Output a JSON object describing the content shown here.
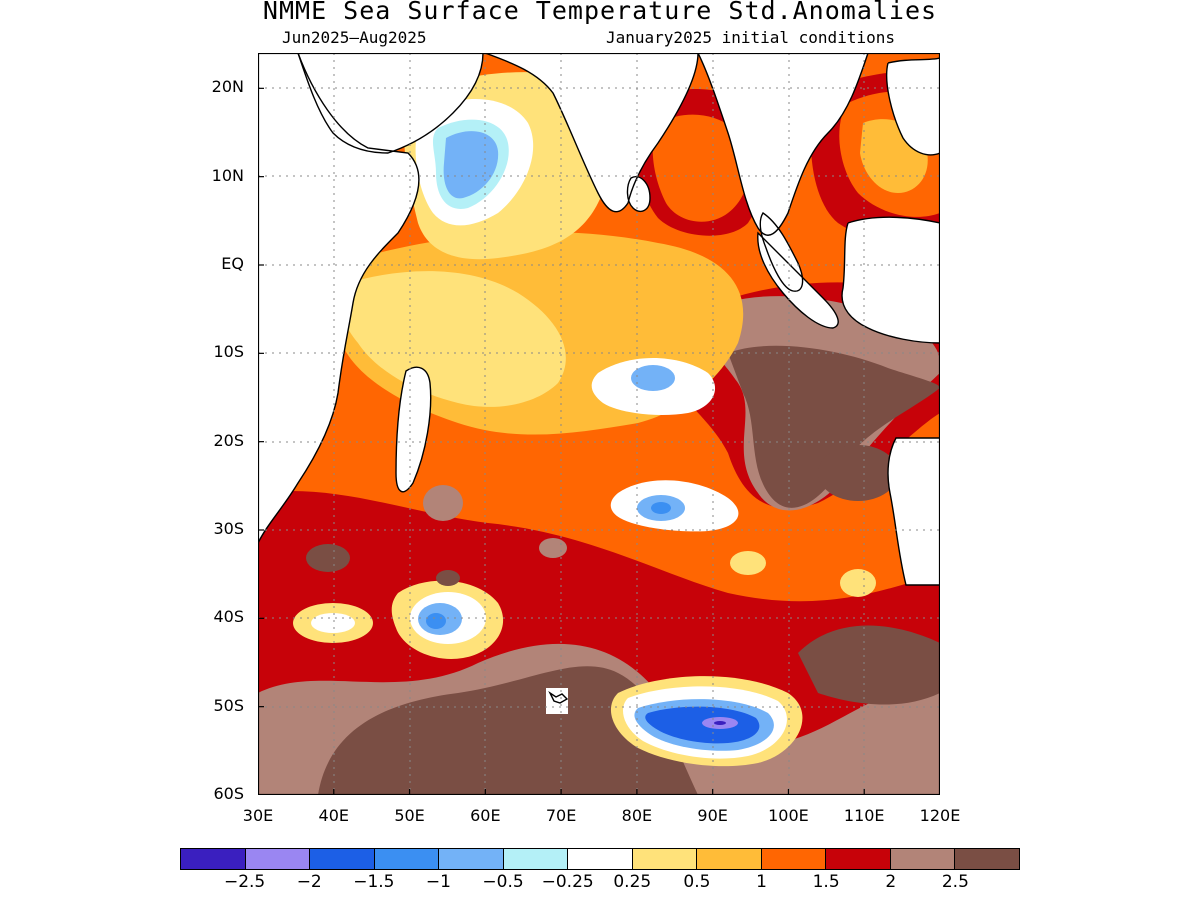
{
  "title": "NMME Sea Surface Temperature Std.Anomalies",
  "subtitle_left": "Jun2025–Aug2025",
  "subtitle_right": "January2025 initial conditions",
  "map": {
    "region": "Indian Ocean",
    "lon_range": [
      30,
      120
    ],
    "lat_range": [
      -60,
      24
    ],
    "lat_ticks": [
      "20N",
      "10N",
      "EQ",
      "10S",
      "20S",
      "30S",
      "40S",
      "50S",
      "60S"
    ],
    "lon_ticks": [
      "30E",
      "40E",
      "50E",
      "60E",
      "70E",
      "80E",
      "90E",
      "100E",
      "110E",
      "120E"
    ],
    "grid": "dotted",
    "features": [
      {
        "name": "Arabian Sea cold anomaly",
        "lon": 53,
        "lat": 12,
        "value": -0.75
      },
      {
        "name": "South Indian Ocean cold patch",
        "lon": 83,
        "lat": -13,
        "value": -0.6
      },
      {
        "name": "Cold patch near 27S",
        "lon": 83,
        "lat": -27,
        "value": -0.6
      },
      {
        "name": "Cold patch near 41S",
        "lon": 54,
        "lat": -41,
        "value": -1.0
      },
      {
        "name": "Southern cold core",
        "lon": 88,
        "lat": -51,
        "value": -2.0
      },
      {
        "name": "Eastern warm pool",
        "lon": 105,
        "lat": -10,
        "value": 2.5
      },
      {
        "name": "Southern warm belt",
        "lon": 65,
        "lat": -52,
        "value": 2.5
      }
    ]
  },
  "colorbar": {
    "colors": [
      "#3a1fbf",
      "#9a86f2",
      "#1c5fe6",
      "#3b8ff2",
      "#73b2f7",
      "#b4f0f7",
      "#ffffff",
      "#ffe27a",
      "#ffbc38",
      "#ff6602",
      "#c70209",
      "#b28478",
      "#7a4e44"
    ],
    "labels": [
      "−2.5",
      "−2",
      "−1.5",
      "−1",
      "−0.5",
      "−0.25",
      "0.25",
      "0.5",
      "1",
      "1.5",
      "2",
      "2.5"
    ]
  }
}
